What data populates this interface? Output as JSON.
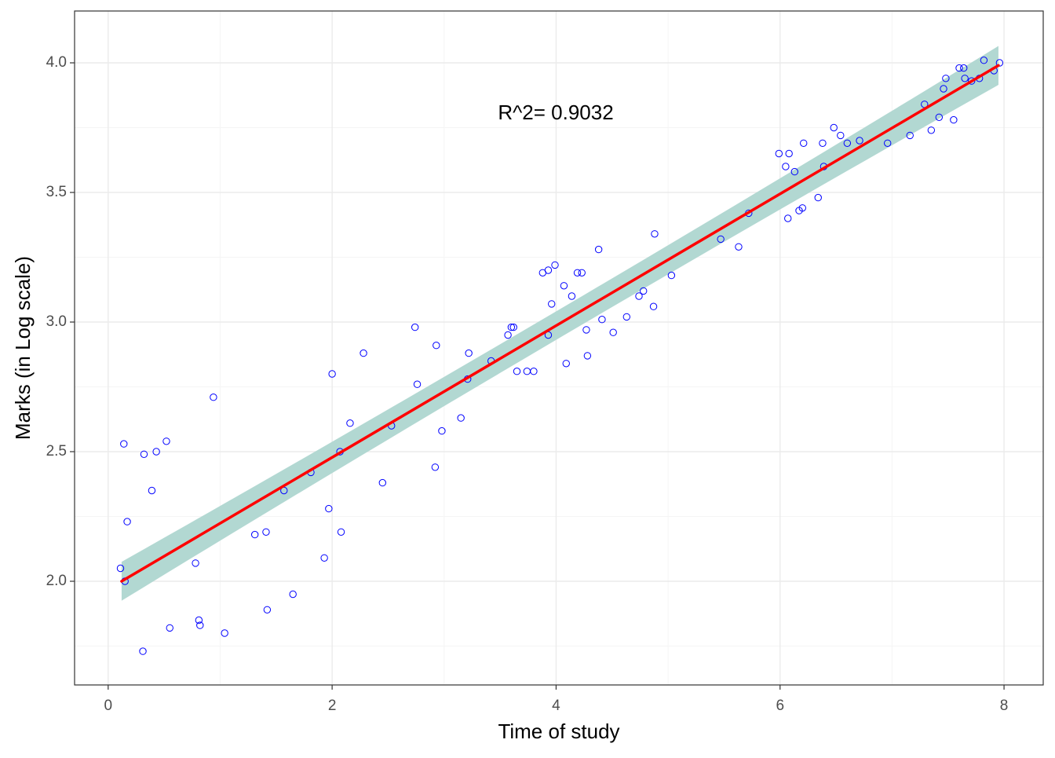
{
  "chart_data": {
    "type": "scatter",
    "xlabel": "Time of study",
    "ylabel": "Marks (in Log scale)",
    "annotation": "R^2= 0.9032",
    "xlim": [
      -0.3,
      8.35
    ],
    "ylim": [
      1.6,
      4.2
    ],
    "x_ticks": [
      0,
      2,
      4,
      6,
      8
    ],
    "x_tick_labels": [
      "0",
      "2",
      "4",
      "6",
      "8"
    ],
    "y_ticks": [
      2.0,
      2.5,
      3.0,
      3.5,
      4.0
    ],
    "y_tick_labels": [
      "2.0",
      "2.5",
      "3.0",
      "3.5",
      "4.0"
    ],
    "grid": true,
    "colors": {
      "points": "#0000ff",
      "fit_line": "#ff0000",
      "confidence_band": "#b2d8d2",
      "grid_major": "#ebebeb",
      "grid_minor": "#f5f5f5",
      "panel_border": "#333333"
    },
    "fit": {
      "x": [
        0.12,
        7.95
      ],
      "y": [
        2.0,
        3.99
      ],
      "band_halfwidth": [
        0.075,
        0.035,
        0.075
      ]
    },
    "points": [
      {
        "x": 0.11,
        "y": 2.05
      },
      {
        "x": 0.15,
        "y": 2.0
      },
      {
        "x": 0.14,
        "y": 2.53
      },
      {
        "x": 0.17,
        "y": 2.23
      },
      {
        "x": 0.31,
        "y": 1.73
      },
      {
        "x": 0.32,
        "y": 2.49
      },
      {
        "x": 0.39,
        "y": 2.35
      },
      {
        "x": 0.43,
        "y": 2.5
      },
      {
        "x": 0.52,
        "y": 2.54
      },
      {
        "x": 0.55,
        "y": 1.82
      },
      {
        "x": 0.78,
        "y": 2.07
      },
      {
        "x": 0.81,
        "y": 1.85
      },
      {
        "x": 0.82,
        "y": 1.83
      },
      {
        "x": 0.94,
        "y": 2.71
      },
      {
        "x": 1.04,
        "y": 1.8
      },
      {
        "x": 1.31,
        "y": 2.18
      },
      {
        "x": 1.41,
        "y": 2.19
      },
      {
        "x": 1.42,
        "y": 1.89
      },
      {
        "x": 1.57,
        "y": 2.35
      },
      {
        "x": 1.65,
        "y": 1.95
      },
      {
        "x": 1.81,
        "y": 2.42
      },
      {
        "x": 1.93,
        "y": 2.09
      },
      {
        "x": 1.97,
        "y": 2.28
      },
      {
        "x": 2.0,
        "y": 2.8
      },
      {
        "x": 2.07,
        "y": 2.5
      },
      {
        "x": 2.08,
        "y": 2.19
      },
      {
        "x": 2.16,
        "y": 2.61
      },
      {
        "x": 2.28,
        "y": 2.88
      },
      {
        "x": 2.45,
        "y": 2.38
      },
      {
        "x": 2.53,
        "y": 2.6
      },
      {
        "x": 2.74,
        "y": 2.98
      },
      {
        "x": 2.76,
        "y": 2.76
      },
      {
        "x": 2.92,
        "y": 2.44
      },
      {
        "x": 2.93,
        "y": 2.91
      },
      {
        "x": 2.98,
        "y": 2.58
      },
      {
        "x": 3.15,
        "y": 2.63
      },
      {
        "x": 3.21,
        "y": 2.78
      },
      {
        "x": 3.22,
        "y": 2.88
      },
      {
        "x": 3.42,
        "y": 2.85
      },
      {
        "x": 3.57,
        "y": 2.95
      },
      {
        "x": 3.6,
        "y": 2.98
      },
      {
        "x": 3.62,
        "y": 2.98
      },
      {
        "x": 3.65,
        "y": 2.81
      },
      {
        "x": 3.74,
        "y": 2.81
      },
      {
        "x": 3.8,
        "y": 2.81
      },
      {
        "x": 3.88,
        "y": 3.19
      },
      {
        "x": 3.93,
        "y": 3.2
      },
      {
        "x": 3.93,
        "y": 2.95
      },
      {
        "x": 3.96,
        "y": 3.07
      },
      {
        "x": 3.99,
        "y": 3.22
      },
      {
        "x": 4.07,
        "y": 3.14
      },
      {
        "x": 4.09,
        "y": 2.84
      },
      {
        "x": 4.14,
        "y": 3.1
      },
      {
        "x": 4.19,
        "y": 3.19
      },
      {
        "x": 4.23,
        "y": 3.19
      },
      {
        "x": 4.27,
        "y": 2.97
      },
      {
        "x": 4.28,
        "y": 2.87
      },
      {
        "x": 4.38,
        "y": 3.28
      },
      {
        "x": 4.41,
        "y": 3.01
      },
      {
        "x": 4.51,
        "y": 2.96
      },
      {
        "x": 4.63,
        "y": 3.02
      },
      {
        "x": 4.74,
        "y": 3.1
      },
      {
        "x": 4.78,
        "y": 3.12
      },
      {
        "x": 4.87,
        "y": 3.06
      },
      {
        "x": 4.88,
        "y": 3.34
      },
      {
        "x": 5.03,
        "y": 3.18
      },
      {
        "x": 5.47,
        "y": 3.32
      },
      {
        "x": 5.63,
        "y": 3.29
      },
      {
        "x": 5.72,
        "y": 3.42
      },
      {
        "x": 5.99,
        "y": 3.65
      },
      {
        "x": 6.05,
        "y": 3.6
      },
      {
        "x": 6.07,
        "y": 3.4
      },
      {
        "x": 6.08,
        "y": 3.65
      },
      {
        "x": 6.13,
        "y": 3.58
      },
      {
        "x": 6.17,
        "y": 3.43
      },
      {
        "x": 6.2,
        "y": 3.44
      },
      {
        "x": 6.21,
        "y": 3.69
      },
      {
        "x": 6.34,
        "y": 3.48
      },
      {
        "x": 6.38,
        "y": 3.69
      },
      {
        "x": 6.39,
        "y": 3.6
      },
      {
        "x": 6.48,
        "y": 3.75
      },
      {
        "x": 6.54,
        "y": 3.72
      },
      {
        "x": 6.6,
        "y": 3.69
      },
      {
        "x": 6.71,
        "y": 3.7
      },
      {
        "x": 6.96,
        "y": 3.69
      },
      {
        "x": 7.16,
        "y": 3.72
      },
      {
        "x": 7.29,
        "y": 3.84
      },
      {
        "x": 7.35,
        "y": 3.74
      },
      {
        "x": 7.42,
        "y": 3.79
      },
      {
        "x": 7.46,
        "y": 3.9
      },
      {
        "x": 7.48,
        "y": 3.94
      },
      {
        "x": 7.55,
        "y": 3.78
      },
      {
        "x": 7.6,
        "y": 3.98
      },
      {
        "x": 7.64,
        "y": 3.98
      },
      {
        "x": 7.65,
        "y": 3.94
      },
      {
        "x": 7.71,
        "y": 3.93
      },
      {
        "x": 7.78,
        "y": 3.94
      },
      {
        "x": 7.82,
        "y": 4.01
      },
      {
        "x": 7.91,
        "y": 3.97
      },
      {
        "x": 7.96,
        "y": 4.0
      }
    ]
  }
}
